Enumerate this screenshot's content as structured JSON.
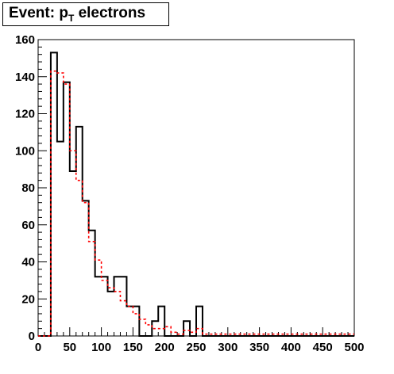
{
  "title": {
    "prefix": "Event: p",
    "subscript": "T",
    "suffix": " electrons"
  },
  "chart_data": {
    "type": "histogram",
    "title": "Event: p_T electrons",
    "xlabel": "",
    "ylabel": "",
    "xlim": [
      0,
      500
    ],
    "ylim": [
      0,
      160
    ],
    "bin_width": 10,
    "x_ticks": [
      0,
      50,
      100,
      150,
      200,
      250,
      300,
      350,
      400,
      450,
      500
    ],
    "y_ticks": [
      0,
      20,
      40,
      60,
      80,
      100,
      120,
      140,
      160
    ],
    "grid": false,
    "legend": "none",
    "series": [
      {
        "style": "solid",
        "color": "#000000",
        "bin_edges": [
          0,
          10,
          20,
          30,
          40,
          50,
          60,
          70,
          80,
          90,
          100,
          110,
          120,
          130,
          140,
          150,
          160,
          170,
          180,
          190,
          200,
          210,
          220,
          230,
          240,
          250,
          260,
          270,
          280,
          290,
          300,
          310,
          320,
          330,
          340,
          350,
          360,
          370,
          380,
          390,
          400,
          410,
          420,
          430,
          440,
          450,
          460,
          470,
          480,
          490,
          500
        ],
        "values": [
          0,
          0,
          153,
          105,
          137,
          89,
          113,
          73,
          57,
          32,
          32,
          24,
          32,
          32,
          16,
          16,
          0,
          0,
          8,
          16,
          0,
          0,
          0,
          8,
          0,
          16,
          0,
          0,
          0,
          0,
          0,
          0,
          0,
          0,
          0,
          0,
          0,
          0,
          0,
          0,
          0,
          0,
          0,
          0,
          0,
          0,
          0,
          0,
          0,
          0
        ]
      },
      {
        "style": "dashed",
        "color": "#ff0000",
        "bin_edges": [
          0,
          10,
          20,
          30,
          40,
          50,
          60,
          70,
          80,
          90,
          100,
          110,
          120,
          130,
          140,
          150,
          160,
          170,
          180,
          190,
          200,
          210,
          220,
          230,
          240,
          250,
          260,
          270,
          280,
          290,
          300,
          310,
          320,
          330,
          340,
          350,
          360,
          370,
          380,
          390,
          400,
          410,
          420,
          430,
          440,
          450,
          460,
          470,
          480,
          490,
          500
        ],
        "values": [
          0,
          0,
          143,
          142,
          136,
          100,
          84,
          72,
          51,
          41,
          30,
          26,
          24,
          19,
          16,
          12,
          9,
          6,
          4,
          4,
          5,
          2,
          1,
          3,
          2,
          4,
          1,
          1,
          1,
          1,
          1,
          1,
          1,
          1,
          1,
          1,
          1,
          1,
          1,
          1,
          1,
          1,
          1,
          1,
          1,
          1,
          1,
          1,
          1,
          1
        ]
      }
    ]
  }
}
